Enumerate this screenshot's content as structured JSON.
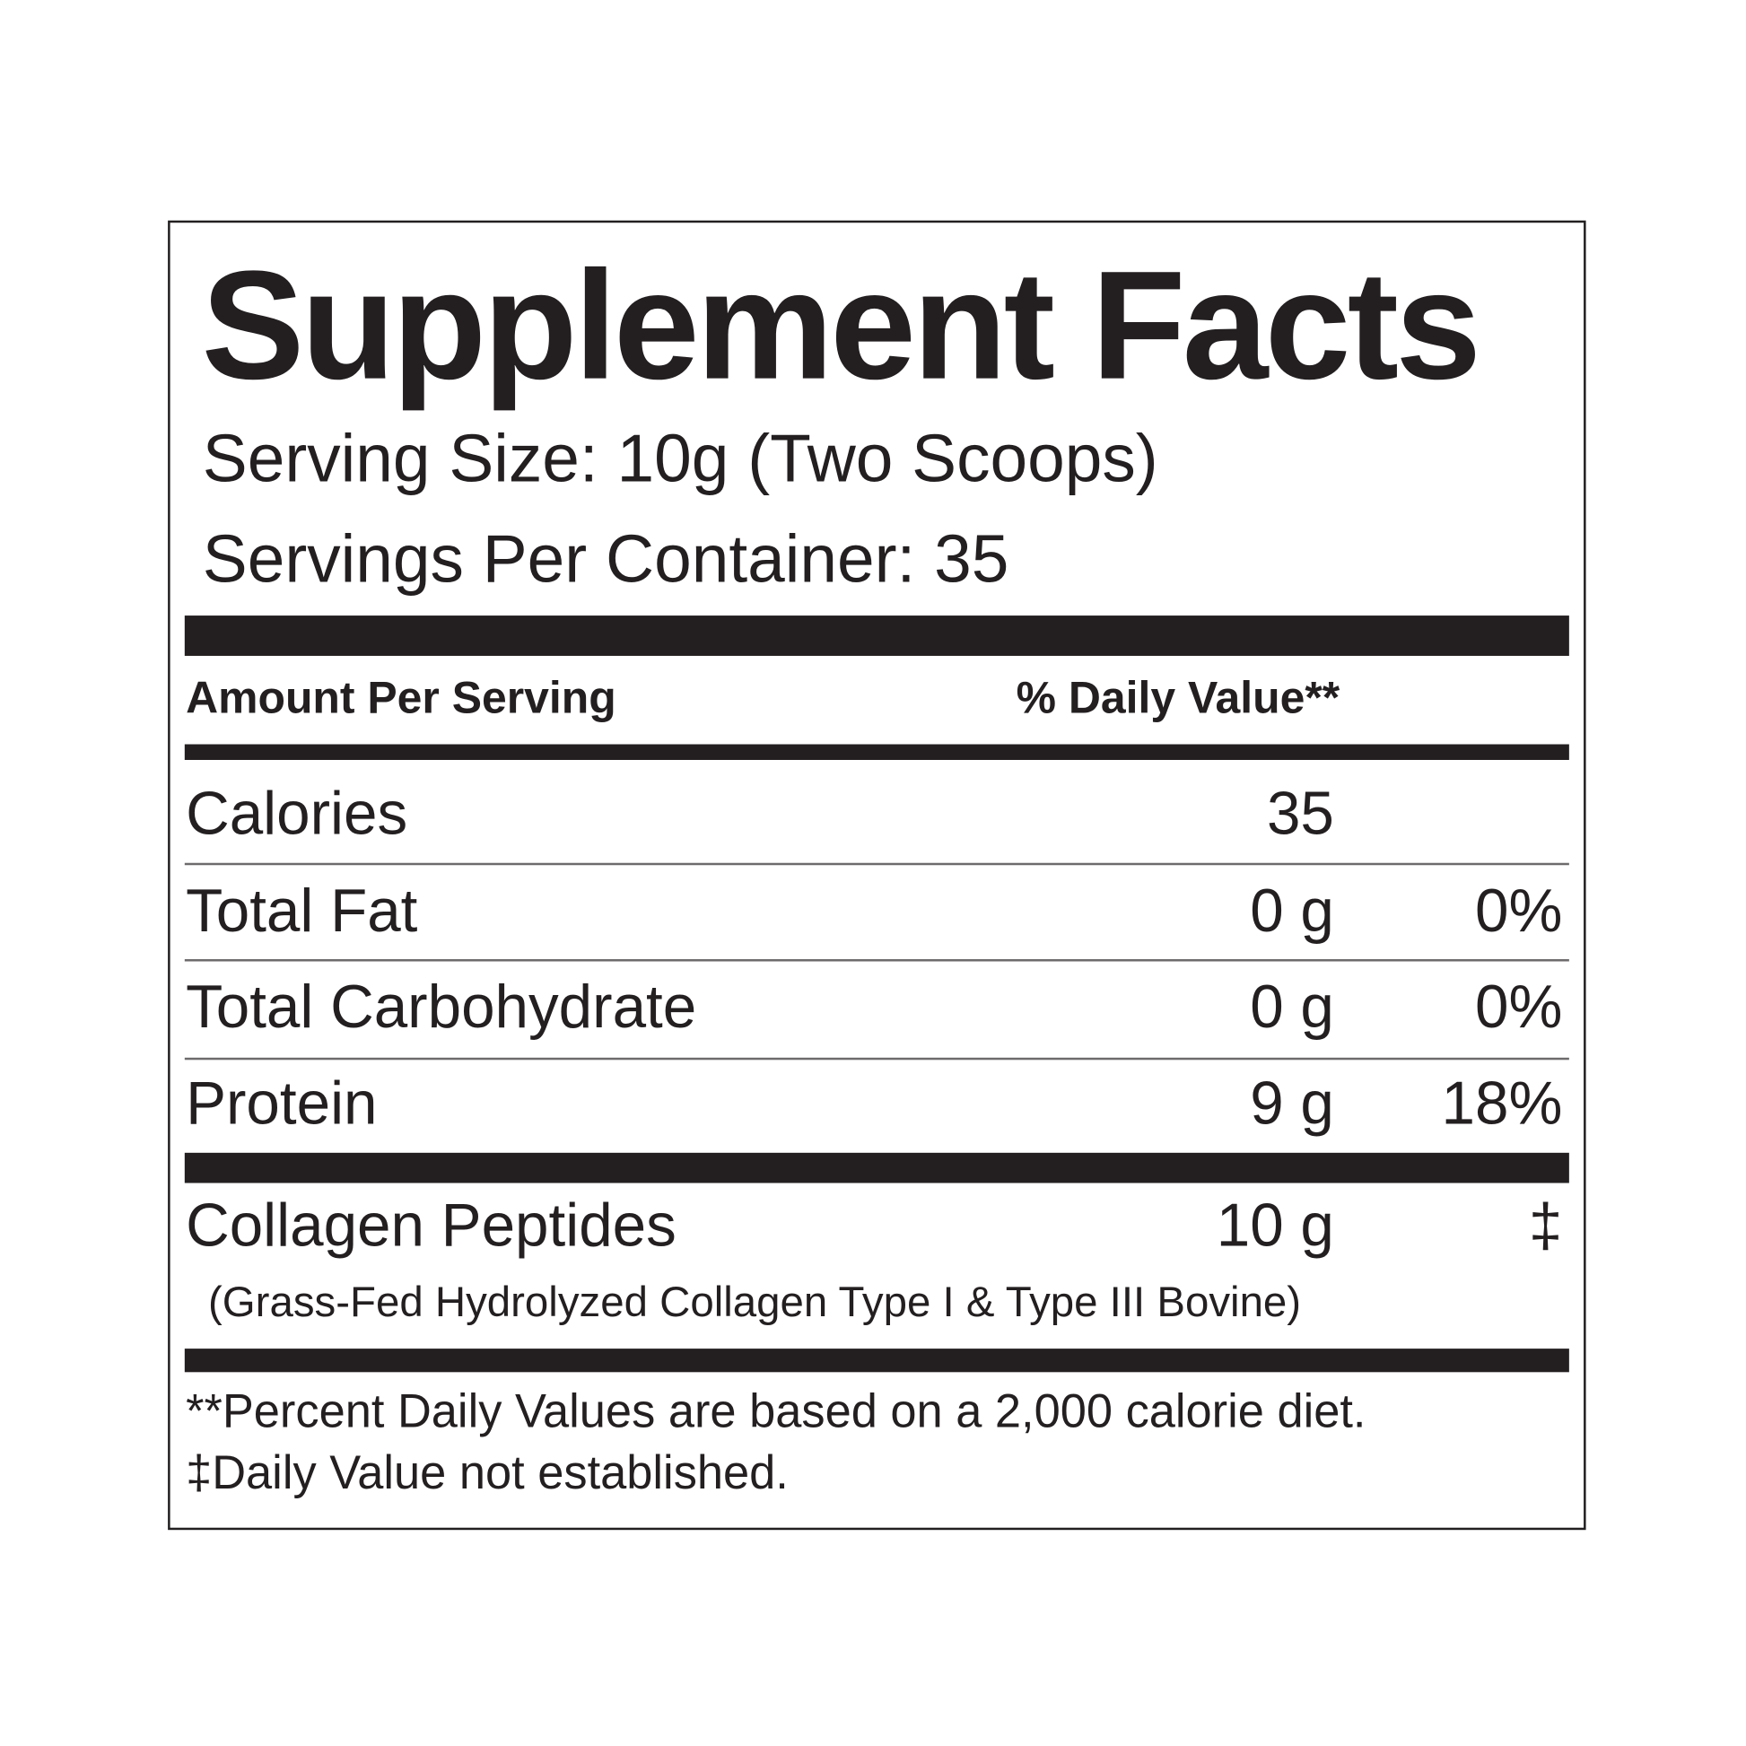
{
  "title": "Supplement Facts",
  "serving_size": "Serving Size: 10g (Two Scoops)",
  "servings_per_container": "Servings Per Container: 35",
  "header": {
    "amount": "Amount Per Serving",
    "daily_value": "% Daily Value**"
  },
  "rows": [
    {
      "name": "Calories",
      "amount": "35",
      "dv": ""
    },
    {
      "name": "Total Fat",
      "amount": "0 g",
      "dv": "0%"
    },
    {
      "name": "Total Carbohydrate",
      "amount": "0 g",
      "dv": "0%"
    },
    {
      "name": "Protein",
      "amount": "9 g",
      "dv": "18%"
    },
    {
      "name": "Collagen Peptides",
      "amount": "10 g",
      "dv": "‡",
      "sub": "(Grass-Fed Hydrolyzed Collagen Type I & Type III Bovine)"
    }
  ],
  "footnotes": [
    "**Percent Daily Values are based on a 2,000 calorie diet.",
    "‡Daily Value not established."
  ],
  "colors": {
    "ink": "#231f20",
    "background": "#ffffff"
  }
}
